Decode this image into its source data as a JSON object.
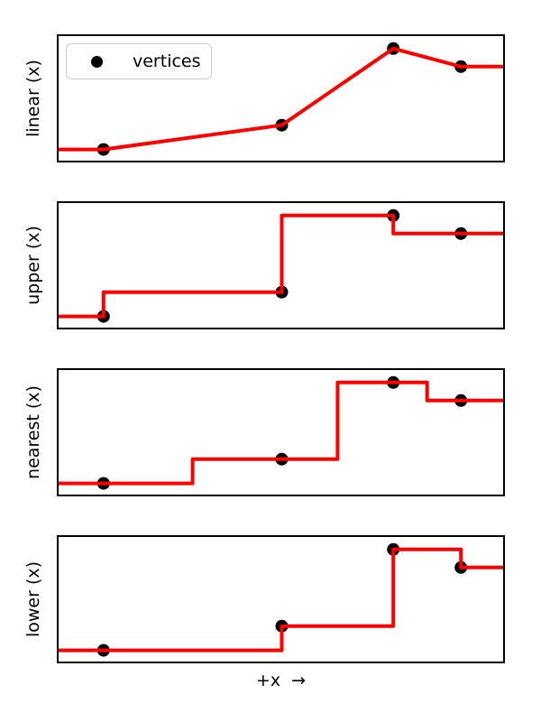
{
  "chart_data": {
    "type": "line",
    "title": "",
    "xlabel": "+x  →",
    "legend": [
      "vertices"
    ],
    "legend_position": "upper left",
    "grid": false,
    "x_range": [
      0,
      1
    ],
    "y_range": [
      0,
      1
    ],
    "axes_ticks": "none",
    "line_color": "#ff0000",
    "line_width": 4,
    "marker_color": "#000000",
    "marker_shape": "circle",
    "marker_radius": 7,
    "vertices": {
      "x": [
        0.101,
        0.502,
        0.753,
        0.905
      ],
      "y": [
        0.09,
        0.285,
        0.9,
        0.755
      ]
    },
    "subplots": [
      {
        "ylabel": "linear (x)",
        "interpolation": "linear"
      },
      {
        "ylabel": "upper (x)",
        "interpolation": "upper"
      },
      {
        "ylabel": "nearest (x)",
        "interpolation": "nearest"
      },
      {
        "ylabel": "lower (x)",
        "interpolation": "lower"
      }
    ]
  }
}
